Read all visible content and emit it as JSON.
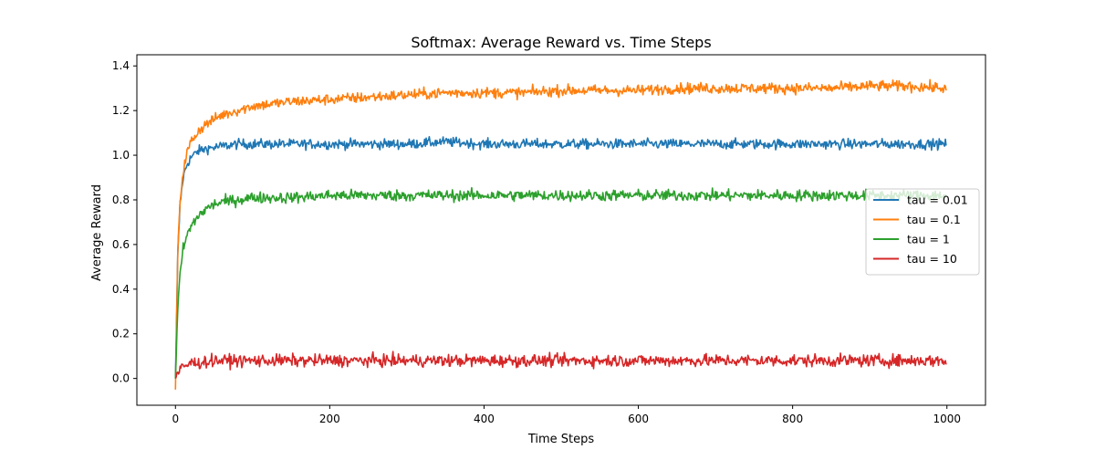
{
  "chart_data": {
    "type": "line",
    "title": "Softmax: Average Reward vs. Time Steps",
    "xlabel": "Time Steps",
    "ylabel": "Average Reward",
    "xlim": [
      -50,
      1050
    ],
    "ylim": [
      -0.12,
      1.45
    ],
    "xticks": [
      0,
      200,
      400,
      600,
      800,
      1000
    ],
    "xtick_labels": [
      "0",
      "200",
      "400",
      "600",
      "800",
      "1000"
    ],
    "yticks": [
      0.0,
      0.2,
      0.4,
      0.6,
      0.8,
      1.0,
      1.2,
      1.4
    ],
    "ytick_labels": [
      "0.0",
      "0.2",
      "0.4",
      "0.6",
      "0.8",
      "1.0",
      "1.2",
      "1.4"
    ],
    "grid": false,
    "legend_position": "center-right",
    "series": [
      {
        "name": "tau = 0.01",
        "color": "#1f77b4",
        "x": [
          0,
          3,
          6,
          10,
          15,
          20,
          30,
          40,
          60,
          80,
          100,
          150,
          200,
          250,
          300,
          350,
          400,
          450,
          500,
          550,
          600,
          650,
          700,
          750,
          800,
          850,
          900,
          950,
          999
        ],
        "y": [
          0.0,
          0.55,
          0.78,
          0.9,
          0.96,
          0.99,
          1.02,
          1.03,
          1.04,
          1.05,
          1.05,
          1.05,
          1.05,
          1.05,
          1.05,
          1.06,
          1.05,
          1.05,
          1.05,
          1.05,
          1.05,
          1.05,
          1.05,
          1.05,
          1.05,
          1.05,
          1.05,
          1.05,
          1.05
        ],
        "noise": 0.022
      },
      {
        "name": "tau = 0.1",
        "color": "#ff7f0e",
        "x": [
          0,
          3,
          6,
          10,
          15,
          20,
          30,
          40,
          60,
          80,
          100,
          150,
          200,
          250,
          300,
          350,
          400,
          450,
          500,
          550,
          600,
          650,
          700,
          750,
          800,
          850,
          900,
          950,
          999
        ],
        "y": [
          -0.05,
          0.55,
          0.8,
          0.93,
          1.01,
          1.06,
          1.11,
          1.14,
          1.18,
          1.2,
          1.22,
          1.24,
          1.25,
          1.26,
          1.27,
          1.28,
          1.28,
          1.28,
          1.29,
          1.29,
          1.29,
          1.3,
          1.3,
          1.3,
          1.3,
          1.3,
          1.31,
          1.31,
          1.3
        ],
        "noise": 0.024
      },
      {
        "name": "tau = 1",
        "color": "#2ca02c",
        "x": [
          0,
          3,
          6,
          10,
          15,
          20,
          30,
          40,
          50,
          60,
          80,
          100,
          150,
          200,
          250,
          300,
          350,
          400,
          450,
          500,
          550,
          600,
          650,
          700,
          750,
          800,
          850,
          900,
          950,
          999
        ],
        "y": [
          0.0,
          0.3,
          0.47,
          0.58,
          0.64,
          0.68,
          0.73,
          0.76,
          0.78,
          0.79,
          0.8,
          0.81,
          0.81,
          0.82,
          0.82,
          0.82,
          0.82,
          0.82,
          0.82,
          0.82,
          0.82,
          0.82,
          0.82,
          0.82,
          0.82,
          0.82,
          0.82,
          0.82,
          0.82,
          0.82
        ],
        "noise": 0.025
      },
      {
        "name": "tau = 10",
        "color": "#d62728",
        "x": [
          0,
          3,
          6,
          10,
          15,
          20,
          30,
          50,
          100,
          200,
          300,
          400,
          500,
          600,
          700,
          800,
          900,
          999
        ],
        "y": [
          0.0,
          0.02,
          0.04,
          0.05,
          0.06,
          0.07,
          0.07,
          0.08,
          0.08,
          0.08,
          0.08,
          0.08,
          0.08,
          0.08,
          0.08,
          0.08,
          0.08,
          0.08
        ],
        "noise": 0.027
      }
    ]
  }
}
